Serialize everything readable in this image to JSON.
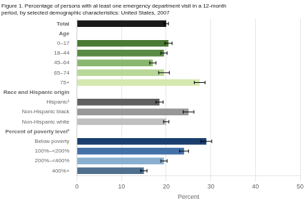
{
  "chart_data": {
    "type": "bar",
    "orientation": "horizontal",
    "title": "Figure 1. Percentage of persons with at least one emergency department visit in a 12-month\nperiod, by selected demographic characteristics: United States, 2007",
    "xlabel": "Percent",
    "categories": [
      "Total",
      "Age",
      "0–17",
      "18–44",
      "45–64",
      "65–74",
      "75+",
      "Race and Hispanic origin",
      "Hispanic¹",
      "Non-Hispanic black",
      "Non-Hispanic white",
      "Percent of poverty level²",
      "Below poverty",
      "100%–<200%",
      "200%–<400%",
      "400%+"
    ],
    "values": [
      20.0,
      null,
      20.5,
      19.5,
      17.0,
      19.5,
      27.5,
      null,
      18.5,
      25.0,
      20.0,
      null,
      29.0,
      24.0,
      19.5,
      15.0
    ],
    "errors": [
      0.5,
      null,
      0.8,
      0.7,
      0.7,
      1.2,
      1.2,
      null,
      0.8,
      1.2,
      0.6,
      null,
      1.2,
      1.0,
      0.7,
      0.7
    ],
    "colors": [
      "#1a1a1a",
      null,
      "#4a7a34",
      "#5a8a44",
      "#8ab870",
      "#b8d898",
      "#d4e8b0",
      null,
      "#606060",
      "#989898",
      "#c0c0c0",
      null,
      "#1a3f6f",
      "#4472a8",
      "#8aafd0",
      "#507090"
    ],
    "xlim": [
      0,
      50
    ],
    "xticks": [
      0,
      10,
      20,
      30,
      40,
      50
    ],
    "grid": true
  }
}
